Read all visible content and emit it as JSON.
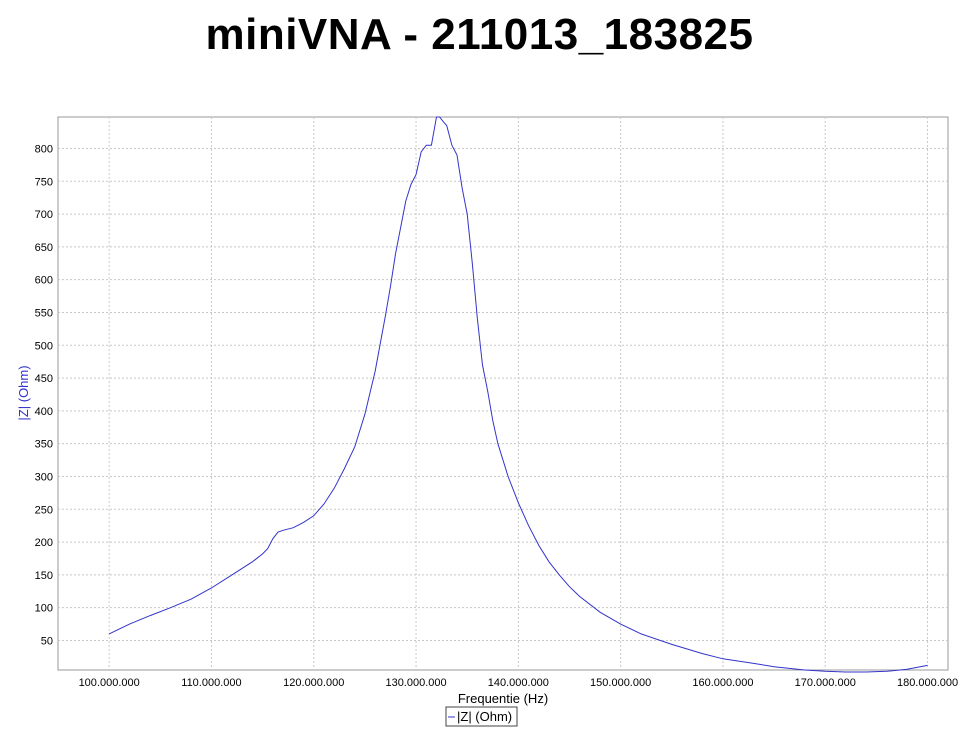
{
  "window": {
    "title": "miniVNA - 211013_183825"
  },
  "chart_data": {
    "type": "line",
    "title": "miniVNA - 211013_183825",
    "xlabel": "Frequentie (Hz)",
    "ylabel": "|Z| (Ohm)",
    "xlim": [
      95000000,
      182000000
    ],
    "ylim": [
      5,
      848
    ],
    "x_ticks": [
      100000000,
      110000000,
      120000000,
      130000000,
      140000000,
      150000000,
      160000000,
      170000000,
      180000000
    ],
    "x_tick_labels": [
      "100.000.000",
      "110.000.000",
      "120.000.000",
      "130.000.000",
      "140.000.000",
      "150.000.000",
      "160.000.000",
      "170.000.000",
      "180.000.000"
    ],
    "y_ticks": [
      50,
      100,
      150,
      200,
      250,
      300,
      350,
      400,
      450,
      500,
      550,
      600,
      650,
      700,
      750,
      800
    ],
    "y_tick_labels": [
      "50",
      "100",
      "150",
      "200",
      "250",
      "300",
      "350",
      "400",
      "450",
      "500",
      "550",
      "600",
      "650",
      "700",
      "750",
      "800"
    ],
    "grid": true,
    "legend": "bottom-center",
    "colors": {
      "series": "#3333cc",
      "grid": "#c8c8c8",
      "ylabel": "#3333cc"
    },
    "series": [
      {
        "name": "|Z| (Ohm)",
        "x": [
          100000000,
          102000000,
          104000000,
          106000000,
          108000000,
          110000000,
          112000000,
          114000000,
          115000000,
          115500000,
          116000000,
          116500000,
          117000000,
          118000000,
          119000000,
          120000000,
          121000000,
          122000000,
          123000000,
          124000000,
          125000000,
          126000000,
          127000000,
          127500000,
          128000000,
          128500000,
          129000000,
          129500000,
          130000000,
          130500000,
          131000000,
          131500000,
          132000000,
          132300000,
          132700000,
          133000000,
          133500000,
          134000000,
          134500000,
          135000000,
          135500000,
          136000000,
          136500000,
          137000000,
          137500000,
          138000000,
          139000000,
          140000000,
          141000000,
          142000000,
          143000000,
          144000000,
          145000000,
          146000000,
          148000000,
          150000000,
          152000000,
          155000000,
          158000000,
          160000000,
          163000000,
          165000000,
          168000000,
          170000000,
          172000000,
          174000000,
          176000000,
          178000000,
          180000000
        ],
        "y": [
          60,
          75,
          88,
          100,
          113,
          130,
          150,
          170,
          182,
          190,
          205,
          215,
          218,
          222,
          230,
          240,
          258,
          282,
          312,
          345,
          395,
          460,
          545,
          590,
          640,
          680,
          720,
          745,
          760,
          795,
          805,
          805,
          848,
          848,
          840,
          835,
          805,
          790,
          740,
          700,
          625,
          540,
          470,
          430,
          385,
          350,
          300,
          260,
          225,
          195,
          170,
          150,
          132,
          117,
          93,
          75,
          60,
          44,
          30,
          22,
          15,
          10,
          5,
          3,
          2,
          2,
          3,
          6,
          12
        ]
      }
    ]
  }
}
